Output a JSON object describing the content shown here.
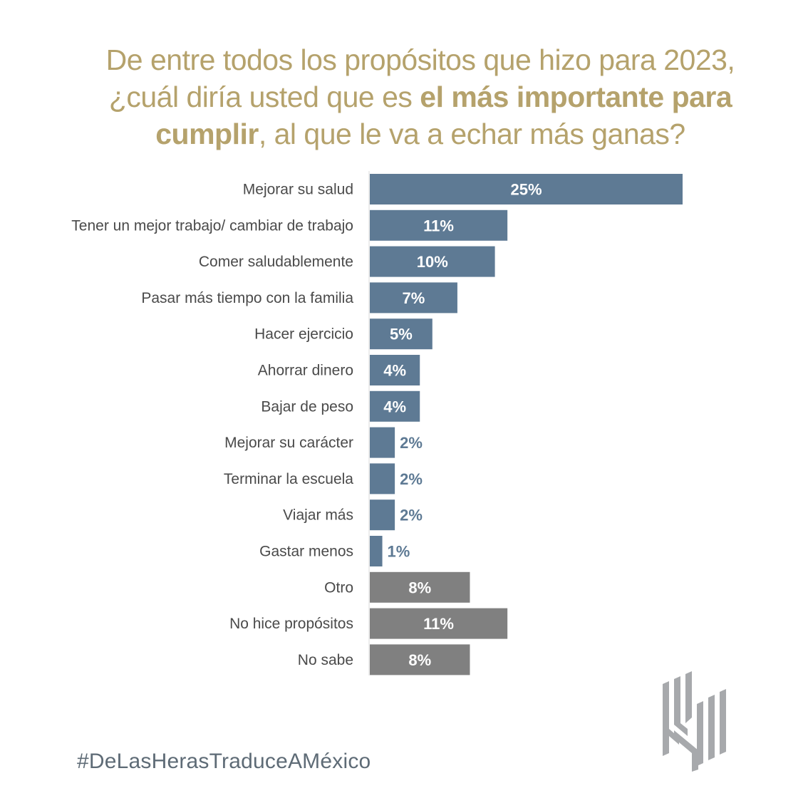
{
  "title": {
    "line1": "De entre todos los propósitos que hizo para 2023,",
    "line2_normal": "¿cuál diría usted que es ",
    "line2_bold": "el más importante para",
    "line3_bold": "cumplir",
    "line3_normal": ", al que le va a echar más ganas?"
  },
  "colors": {
    "title": "#b5a26c",
    "primary_bar": "#5e7a94",
    "other_bar": "#808080",
    "label_text": "#4a4a4a",
    "logo": "#a7a9ac"
  },
  "chart_data": {
    "type": "bar",
    "orientation": "horizontal",
    "title": "De entre todos los propósitos que hizo para 2023, ¿cuál diría usted que es el más importante para cumplir, al que le va a echar más ganas?",
    "xlabel": "",
    "ylabel": "",
    "xlim": [
      0,
      25
    ],
    "grid": false,
    "categories": [
      "Mejorar su salud",
      "Tener un mejor trabajo/ cambiar de trabajo",
      "Comer saludablemente",
      "Pasar más tiempo con la familia",
      "Hacer ejercicio",
      "Ahorrar dinero",
      "Bajar de peso",
      "Mejorar su carácter",
      "Terminar la escuela",
      "Viajar más",
      "Gastar menos",
      "Otro",
      "No hice propósitos",
      "No sabe"
    ],
    "values": [
      25,
      11,
      10,
      7,
      5,
      4,
      4,
      2,
      2,
      2,
      1,
      8,
      11,
      8
    ],
    "value_labels": [
      "25%",
      "11%",
      "10%",
      "7%",
      "5%",
      "4%",
      "4%",
      "2%",
      "2%",
      "2%",
      "1%",
      "8%",
      "11%",
      "8%"
    ],
    "groups": [
      "primary",
      "primary",
      "primary",
      "primary",
      "primary",
      "primary",
      "primary",
      "primary",
      "primary",
      "primary",
      "primary",
      "other",
      "other",
      "other"
    ]
  },
  "footer": {
    "hashtag": "#DeLasHerasTraduceAMéxico"
  },
  "logo": {
    "icon": "de-las-heras-logo"
  }
}
